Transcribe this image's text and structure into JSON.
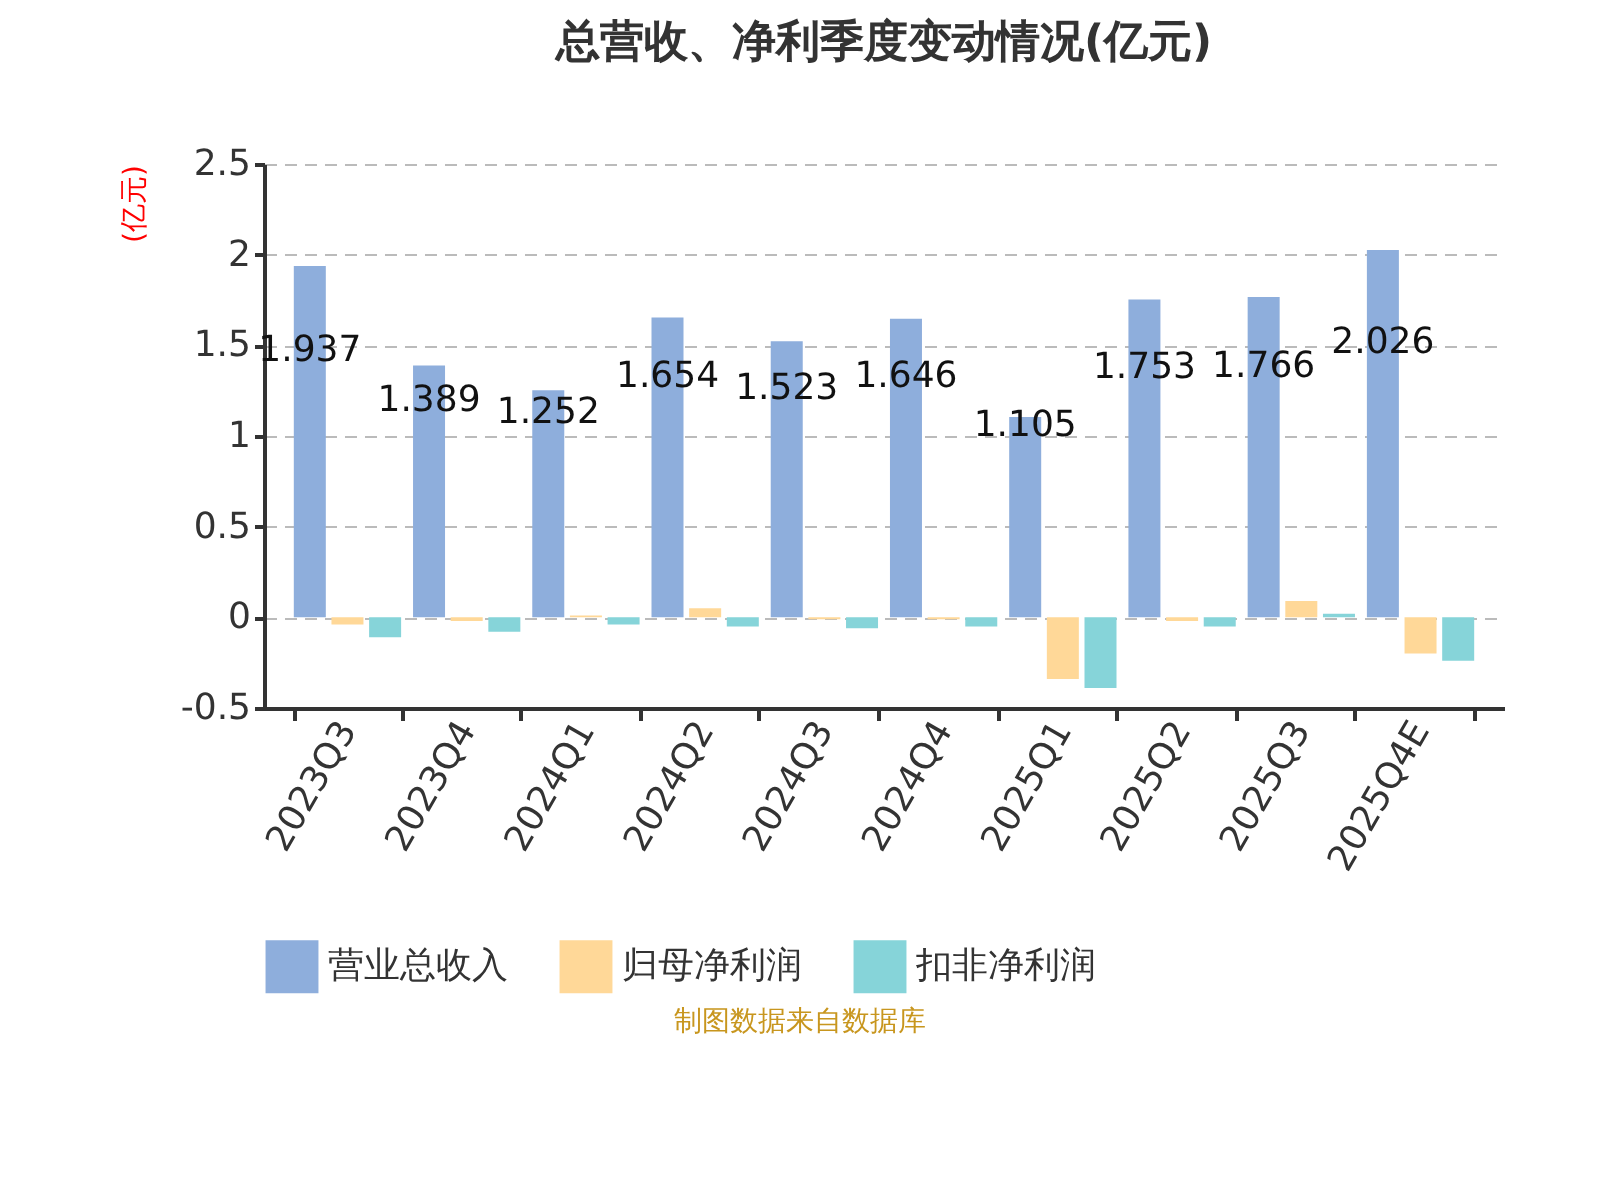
{
  "chart_data": {
    "type": "bar",
    "title": "总营收、净利季度变动情况(亿元)",
    "ylabel": "(亿元)",
    "categories": [
      "2023Q3",
      "2023Q4",
      "2024Q1",
      "2024Q2",
      "2024Q3",
      "2024Q4",
      "2025Q1",
      "2025Q2",
      "2025Q3",
      "2025Q4E"
    ],
    "series": [
      {
        "name": "营业总收入",
        "color": "#8eaedc",
        "values": [
          1.937,
          1.389,
          1.252,
          1.654,
          1.523,
          1.646,
          1.105,
          1.753,
          1.766,
          2.026
        ],
        "value_labels": [
          "1.937",
          "1.389",
          "1.252",
          "1.654",
          "1.523",
          "1.646",
          "1.105",
          "1.753",
          "1.766",
          "2.026"
        ]
      },
      {
        "name": "归母净利润",
        "color": "#ffd898",
        "values": [
          -0.04,
          -0.02,
          0.01,
          0.05,
          -0.01,
          -0.01,
          -0.34,
          -0.02,
          0.09,
          -0.2
        ]
      },
      {
        "name": "扣非净利润",
        "color": "#86d4d9",
        "values": [
          -0.11,
          -0.08,
          -0.04,
          -0.05,
          -0.06,
          -0.05,
          -0.39,
          -0.05,
          0.02,
          -0.24
        ]
      }
    ],
    "ylim": [
      -0.5,
      2.5
    ],
    "yticks": [
      -0.5,
      0,
      0.5,
      1,
      1.5,
      2,
      2.5
    ],
    "grid": "y",
    "legend": "bottom",
    "annotations": [
      "制图数据来自数据库"
    ]
  }
}
